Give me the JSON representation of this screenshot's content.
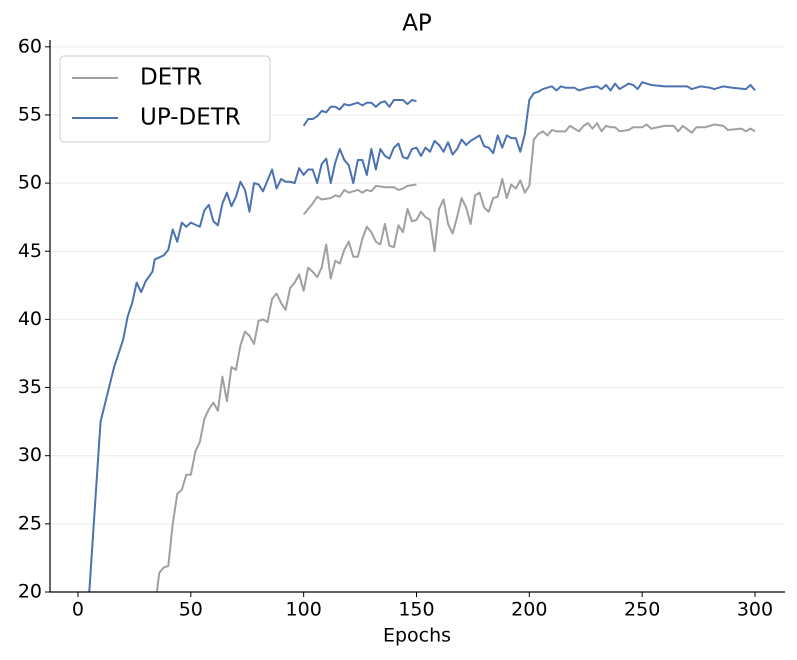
{
  "chart_data": {
    "type": "line",
    "title": "AP",
    "x_label": "Epochs",
    "xlim": [
      -12.4,
      313.3
    ],
    "ylim": [
      20,
      60.5
    ],
    "xticks": [
      0,
      50,
      100,
      150,
      200,
      250,
      300
    ],
    "yticks": [
      20,
      25,
      30,
      35,
      40,
      45,
      50,
      55,
      60
    ],
    "grid": true,
    "legend": "upper-left",
    "series": [
      {
        "name": "DETR",
        "color": "#a0a0a0",
        "x": [
          35,
          36,
          38,
          40,
          42,
          44,
          46,
          48,
          50,
          52,
          54,
          56,
          58,
          60,
          62,
          64,
          66,
          68,
          70,
          72,
          74,
          76,
          78,
          80,
          82,
          84,
          86,
          88,
          90,
          92,
          94,
          96,
          98,
          100,
          102,
          104,
          106,
          108,
          110,
          112,
          114,
          116,
          118,
          120,
          122,
          124,
          126,
          128,
          130,
          132,
          134,
          136,
          138,
          140,
          142,
          144,
          146,
          148,
          150,
          152,
          154,
          156,
          158,
          160,
          162,
          164,
          166,
          168,
          170,
          172,
          174,
          176,
          178,
          180,
          182,
          184,
          186,
          188,
          190,
          192,
          194,
          196,
          198,
          200,
          202,
          204,
          206,
          208,
          210,
          212,
          216,
          218,
          220,
          222,
          224,
          226,
          228,
          230,
          232,
          234,
          236,
          238,
          240,
          244,
          246,
          250,
          252,
          254,
          260,
          264,
          266,
          268,
          272,
          274,
          278,
          282,
          286,
          288,
          294,
          296,
          298,
          300,
          null,
          100,
          102,
          104,
          106,
          108,
          112,
          114,
          116,
          118,
          120,
          122,
          124,
          126,
          128,
          130,
          132,
          136,
          140,
          142,
          144,
          146,
          150
        ],
        "values": [
          20,
          21.4,
          21.8,
          21.9,
          25,
          27.2,
          27.5,
          28.6,
          28.6,
          30.3,
          31,
          32.7,
          33.4,
          33.9,
          33.3,
          35.8,
          34,
          36.5,
          36.3,
          38.1,
          39.1,
          38.8,
          38.2,
          39.9,
          40,
          39.8,
          41.5,
          41.9,
          41.2,
          40.7,
          42.3,
          42.7,
          43.3,
          42.1,
          43.8,
          43.5,
          43.1,
          43.8,
          45.5,
          43,
          44.3,
          44.1,
          45.1,
          45.7,
          44.6,
          44.6,
          45.9,
          46.8,
          46.4,
          45.7,
          45.5,
          47,
          45.4,
          45.3,
          46.9,
          46.4,
          48.1,
          47.2,
          47.3,
          47.9,
          47.5,
          47.3,
          45,
          48.1,
          48.8,
          47,
          46.3,
          47.5,
          48.9,
          48.2,
          47,
          49.1,
          49.3,
          48.2,
          47.9,
          48.9,
          49,
          50.3,
          48.9,
          49.9,
          49.6,
          50.2,
          49.3,
          49.8,
          53.2,
          53.6,
          53.8,
          53.5,
          53.9,
          53.8,
          53.8,
          54.2,
          54,
          53.8,
          54.2,
          54.4,
          54,
          54.4,
          53.8,
          54.2,
          54.1,
          54.1,
          53.8,
          53.9,
          54.1,
          54.1,
          54.3,
          54,
          54.2,
          54.2,
          53.8,
          54.2,
          53.7,
          54.1,
          54.1,
          54.3,
          54.2,
          53.9,
          54,
          53.8,
          54,
          53.8,
          null,
          47.7,
          48.1,
          48.5,
          49,
          48.8,
          48.9,
          49.1,
          49,
          49.5,
          49.3,
          49.4,
          49.5,
          49.3,
          49.5,
          49.4,
          49.8,
          49.7,
          49.7,
          49.5,
          49.6,
          49.8,
          49.9
        ]
      },
      {
        "name": "UP-DETR",
        "color": "#4c72b0",
        "x": [
          5,
          7,
          10,
          13,
          16,
          20,
          22,
          24,
          26,
          28,
          30,
          33,
          34,
          38,
          40,
          42,
          44,
          46,
          48,
          50,
          54,
          56,
          58,
          60,
          62,
          64,
          66,
          68,
          70,
          72,
          74,
          76,
          78,
          80,
          82,
          84,
          86,
          88,
          90,
          92,
          94,
          96,
          98,
          100,
          102,
          104,
          106,
          108,
          110,
          112,
          114,
          116,
          118,
          120,
          122,
          124,
          126,
          128,
          130,
          132,
          134,
          136,
          138,
          140,
          142,
          144,
          146,
          148,
          150,
          152,
          154,
          156,
          158,
          160,
          162,
          164,
          166,
          168,
          170,
          172,
          174,
          176,
          178,
          180,
          182,
          184,
          186,
          188,
          190,
          192,
          194,
          196,
          198,
          200,
          202,
          204,
          206,
          210,
          212,
          214,
          216,
          220,
          222,
          226,
          230,
          232,
          234,
          236,
          238,
          240,
          244,
          246,
          248,
          250,
          254,
          260,
          270,
          272,
          276,
          280,
          282,
          286,
          290,
          296,
          298,
          300,
          null,
          100,
          102,
          104,
          106,
          108,
          110,
          112,
          114,
          116,
          118,
          120,
          124,
          126,
          128,
          130,
          132,
          134,
          136,
          138,
          140,
          144,
          146,
          148,
          150
        ],
        "values": [
          20,
          25,
          32.5,
          34.5,
          36.5,
          38.5,
          40.2,
          41.2,
          42.7,
          42,
          42.8,
          43.5,
          44.4,
          44.7,
          45.1,
          46.6,
          45.7,
          47.1,
          46.8,
          47.1,
          46.8,
          48,
          48.4,
          47.2,
          46.9,
          48.5,
          49.3,
          48.3,
          49,
          50.1,
          49.5,
          47.9,
          50,
          49.9,
          49.4,
          50.2,
          51,
          49.6,
          50.3,
          50.1,
          50.1,
          50,
          51.1,
          50.6,
          51,
          51,
          50,
          51.4,
          51.8,
          50,
          51.5,
          52.5,
          51.7,
          51.3,
          50,
          51.7,
          51.7,
          50.6,
          52.5,
          51,
          52.5,
          52,
          51.8,
          52.6,
          52.9,
          51.9,
          51.8,
          52.5,
          52.6,
          52,
          52.6,
          52.3,
          53.1,
          52.8,
          52.3,
          53,
          52.1,
          52.5,
          53.2,
          52.8,
          53.1,
          53.3,
          53.5,
          52.7,
          52.6,
          52.2,
          53.5,
          52.6,
          53.5,
          53.3,
          53.3,
          52.3,
          53.6,
          56.1,
          56.6,
          56.7,
          56.9,
          57.1,
          56.8,
          57.1,
          57,
          57,
          56.8,
          57,
          57.1,
          56.9,
          57.2,
          56.8,
          57.3,
          56.9,
          57.3,
          57.2,
          56.9,
          57.4,
          57.2,
          57.1,
          57.1,
          56.9,
          57.1,
          57,
          56.9,
          57.1,
          57,
          56.9,
          57.2,
          56.8,
          null,
          54.2,
          54.7,
          54.7,
          54.9,
          55.3,
          55.2,
          55.6,
          55.6,
          55.4,
          55.8,
          55.7,
          55.9,
          55.7,
          55.9,
          55.9,
          55.6,
          55.9,
          56,
          55.6,
          56.1,
          56.1,
          55.8,
          56.1,
          56
        ]
      }
    ]
  }
}
